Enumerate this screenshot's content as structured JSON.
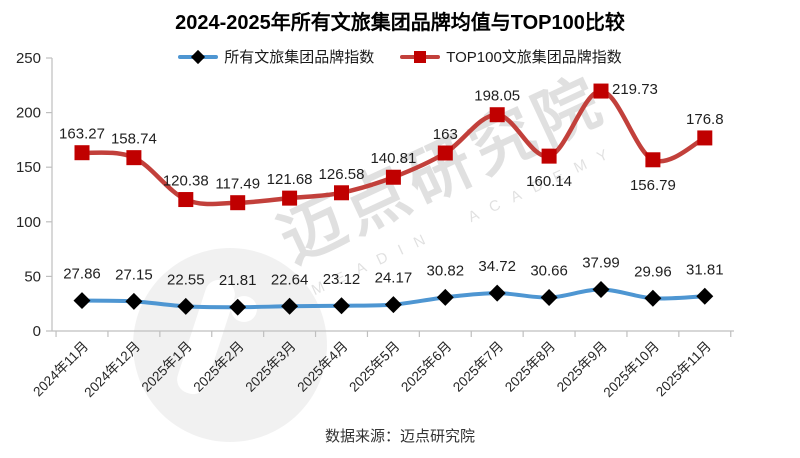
{
  "footer": {
    "source_label": "数据来源：迈点研究院"
  },
  "watermark": {
    "text": "迈点研究院",
    "subtext": "MEADIN ACADEMY"
  },
  "colors": {
    "blue_line": "#4E96D2",
    "black_marker": "#000000",
    "red_line": "#C2403B",
    "red_marker": "#C00000",
    "axis": "#BFBFBF"
  },
  "chart_data": {
    "type": "line",
    "title": "2024-2025年所有文旅集团品牌均值与TOP100比较",
    "categories": [
      "2024年11月",
      "2024年12月",
      "2025年1月",
      "2025年2月",
      "2025年3月",
      "2025年4月",
      "2025年5月",
      "2025年6月",
      "2025年7月",
      "2025年8月",
      "2025年9月",
      "2025年10月",
      "2025年11月"
    ],
    "series": [
      {
        "name": "所有文旅集团品牌指数",
        "color": "#4E96D2",
        "marker": "diamond",
        "marker_color": "#000000",
        "values": [
          27.86,
          27.15,
          22.55,
          21.81,
          22.64,
          23.12,
          24.17,
          30.82,
          34.72,
          30.66,
          37.99,
          29.96,
          31.81
        ],
        "label_dy": -22
      },
      {
        "name": "TOP100文旅集团品牌指数",
        "color": "#C2403B",
        "marker": "square",
        "marker_color": "#C00000",
        "values": [
          163.27,
          158.74,
          120.38,
          117.49,
          121.68,
          126.58,
          140.81,
          163,
          198.05,
          160.14,
          219.73,
          156.79,
          176.8
        ],
        "label_dy": -14,
        "label_pos": [
          "above",
          "above",
          "above",
          "above",
          "above",
          "above",
          "above",
          "above",
          "above",
          "below",
          "right",
          "below",
          "above"
        ]
      }
    ],
    "xlabel": "",
    "ylabel": "",
    "ylim": [
      0,
      250
    ],
    "ytick_step": 50,
    "grid": false,
    "legend_position": "top"
  }
}
